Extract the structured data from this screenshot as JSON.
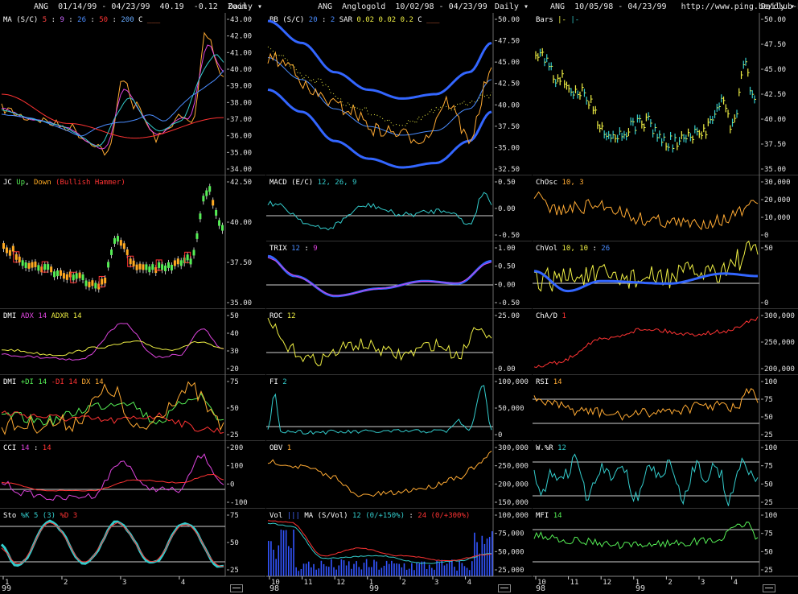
{
  "columns": [
    {
      "id": "left",
      "symbol": "ANG",
      "range": "01/14/99 - 04/23/99",
      "last": "40.19",
      "change": "-0.12",
      "zoom": "Zoom",
      "period": "Daily",
      "panes": [
        {
          "id": "ma",
          "label": [
            {
              "t": "MA (S/C) ",
              "c": "#ffffff"
            },
            {
              "t": "5",
              "c": "#ff4444"
            },
            {
              "t": " : ",
              "c": "#ffffff"
            },
            {
              "t": "9",
              "c": "#cc66ff"
            },
            {
              "t": " : ",
              "c": "#ffffff"
            },
            {
              "t": "26",
              "c": "#4a8cff"
            },
            {
              "t": " : ",
              "c": "#ffffff"
            },
            {
              "t": "50",
              "c": "#ff3333"
            },
            {
              "t": " : ",
              "c": "#ffffff"
            },
            {
              "t": "200",
              "c": "#66aaff"
            },
            {
              "t": "   C ",
              "c": "#ffffff"
            },
            {
              "t": "___",
              "c": "#ff7744"
            }
          ],
          "ticks": [
            "43.00",
            "42.00",
            "41.00",
            "40.00",
            "39.00",
            "38.00",
            "37.00",
            "36.00",
            "35.00",
            "34.00"
          ]
        },
        {
          "id": "jc",
          "label": [
            {
              "t": "JC ",
              "c": "#ffffff"
            },
            {
              "t": "Up",
              "c": "#55ee55"
            },
            {
              "t": ", ",
              "c": "#ffffff"
            },
            {
              "t": "Down",
              "c": "#ffaa22"
            },
            {
              "t": "  (Bullish Hammer)",
              "c": "#ff3333"
            }
          ],
          "ticks": [
            "42.50",
            "40.00",
            "37.50",
            "35.00"
          ]
        },
        {
          "id": "dmi1",
          "label": [
            {
              "t": "DMI ",
              "c": "#ffffff"
            },
            {
              "t": "ADX 14",
              "c": "#dd44dd"
            },
            {
              "t": " ",
              "c": "#ffffff"
            },
            {
              "t": "ADXR 14",
              "c": "#eeee44"
            }
          ],
          "ticks": [
            "50",
            "40",
            "30",
            "20"
          ]
        },
        {
          "id": "dmi2",
          "label": [
            {
              "t": "DMI ",
              "c": "#ffffff"
            },
            {
              "t": "+DI 14",
              "c": "#55ee55"
            },
            {
              "t": " ",
              "c": "#ffffff"
            },
            {
              "t": "-DI 14",
              "c": "#ff3333"
            },
            {
              "t": " ",
              "c": "#ffffff"
            },
            {
              "t": "DX 14",
              "c": "#ffaa33"
            }
          ],
          "ticks": [
            "75",
            "50",
            "25"
          ]
        },
        {
          "id": "cci",
          "label": [
            {
              "t": "CCI ",
              "c": "#ffffff"
            },
            {
              "t": "14",
              "c": "#dd44dd"
            },
            {
              "t": " : ",
              "c": "#ffffff"
            },
            {
              "t": "14",
              "c": "#ff3333"
            }
          ],
          "ticks": [
            "200",
            "100",
            "0",
            "-100"
          ]
        },
        {
          "id": "sto",
          "label": [
            {
              "t": "Sto ",
              "c": "#ffffff"
            },
            {
              "t": "%K 5 (3)",
              "c": "#33cccc"
            },
            {
              "t": " ",
              "c": "#ffffff"
            },
            {
              "t": "%D 3",
              "c": "#ff3333"
            }
          ],
          "ticks": [
            "75",
            "50",
            "25"
          ]
        }
      ],
      "xlabels": [
        "1",
        "2",
        "3",
        "4"
      ],
      "year": "99"
    },
    {
      "id": "mid",
      "symbol": "ANG",
      "name": "Anglogold",
      "range": "10/02/98 - 04/23/99",
      "period": "Daily",
      "panes": [
        {
          "id": "bb",
          "label": [
            {
              "t": "BB (S/C) ",
              "c": "#ffffff"
            },
            {
              "t": "20",
              "c": "#4a8cff"
            },
            {
              "t": " : ",
              "c": "#ffffff"
            },
            {
              "t": "2",
              "c": "#4a8cff"
            },
            {
              "t": "   SAR  ",
              "c": "#ffffff"
            },
            {
              "t": "0.02",
              "c": "#eeee44"
            },
            {
              "t": "  ",
              "c": "#ffffff"
            },
            {
              "t": "0.02",
              "c": "#eeee44"
            },
            {
              "t": "  ",
              "c": "#ffffff"
            },
            {
              "t": "0.2",
              "c": "#eeee44"
            },
            {
              "t": "    C ",
              "c": "#ffffff"
            },
            {
              "t": "___",
              "c": "#ff7744"
            }
          ],
          "ticks": [
            "50.00",
            "47.50",
            "45.00",
            "42.50",
            "40.00",
            "37.50",
            "35.00",
            "32.50"
          ]
        },
        {
          "id": "macd",
          "label": [
            {
              "t": "MACD (E/C) ",
              "c": "#ffffff"
            },
            {
              "t": "12, 26, 9",
              "c": "#33cccc"
            }
          ],
          "ticks": [
            "0.50",
            "0.00",
            "-0.50"
          ]
        },
        {
          "id": "trix",
          "label": [
            {
              "t": "TRIX ",
              "c": "#ffffff"
            },
            {
              "t": "12",
              "c": "#4a8cff"
            },
            {
              "t": " : ",
              "c": "#ffffff"
            },
            {
              "t": "9",
              "c": "#dd44dd"
            }
          ],
          "ticks": [
            "1.00",
            "0.50",
            "0.00",
            "-0.50"
          ]
        },
        {
          "id": "roc",
          "label": [
            {
              "t": "ROC ",
              "c": "#ffffff"
            },
            {
              "t": "12",
              "c": "#eeee44"
            }
          ],
          "ticks": [
            "25.00",
            "0.00"
          ]
        },
        {
          "id": "fi",
          "label": [
            {
              "t": "FI ",
              "c": "#ffffff"
            },
            {
              "t": "2",
              "c": "#33cccc"
            }
          ],
          "ticks": [
            "100,000",
            "50,000",
            "0"
          ]
        },
        {
          "id": "obv",
          "label": [
            {
              "t": "OBV ",
              "c": "#ffffff"
            },
            {
              "t": "1",
              "c": "#ffaa33"
            }
          ],
          "ticks": [
            "300,000",
            "250,000",
            "200,000",
            "150,000"
          ]
        },
        {
          "id": "vol",
          "label": [
            {
              "t": "Vol ",
              "c": "#ffffff"
            },
            {
              "t": "|||",
              "c": "#4466ff"
            },
            {
              "t": "  MA (S/Vol) ",
              "c": "#ffffff"
            },
            {
              "t": "12 (0/+150%)",
              "c": "#33cccc"
            },
            {
              "t": " : ",
              "c": "#ffffff"
            },
            {
              "t": "24 (0/+300%)",
              "c": "#ff3333"
            }
          ],
          "ticks": [
            "100,000",
            "75,000",
            "50,000",
            "25,000"
          ]
        }
      ],
      "xlabels": [
        "10",
        "11",
        "12",
        "1",
        "2",
        "3",
        "4"
      ],
      "years": [
        "98",
        "99"
      ]
    },
    {
      "id": "right",
      "symbol": "ANG",
      "range": "10/05/98 - 04/23/99",
      "url": "http://www.ping.be/club-bourse",
      "period": "Daily",
      "panes": [
        {
          "id": "bars",
          "label": [
            {
              "t": "Bars ",
              "c": "#ffffff"
            },
            {
              "t": "|-",
              "c": "#eeee44"
            },
            {
              "t": "  ",
              "c": "#ffffff"
            },
            {
              "t": "|-",
              "c": "#33cccc"
            }
          ],
          "ticks": [
            "50.00",
            "47.50",
            "45.00",
            "42.50",
            "40.00",
            "37.50",
            "35.00"
          ]
        },
        {
          "id": "chosc",
          "label": [
            {
              "t": "ChOsc ",
              "c": "#ffffff"
            },
            {
              "t": "10, 3",
              "c": "#ffaa33"
            }
          ],
          "ticks": [
            "30,000",
            "20,000",
            "10,000",
            "0"
          ]
        },
        {
          "id": "chvol",
          "label": [
            {
              "t": "ChVol ",
              "c": "#ffffff"
            },
            {
              "t": "10, 10",
              "c": "#eeee44"
            },
            {
              "t": " : ",
              "c": "#ffffff"
            },
            {
              "t": "26",
              "c": "#4a8cff"
            }
          ],
          "ticks": [
            "50",
            "0"
          ]
        },
        {
          "id": "chad",
          "label": [
            {
              "t": "ChA/D ",
              "c": "#ffffff"
            },
            {
              "t": "1",
              "c": "#ff3333"
            }
          ],
          "ticks": [
            "300,000",
            "250,000",
            "200,000"
          ]
        },
        {
          "id": "rsi",
          "label": [
            {
              "t": "RSI ",
              "c": "#ffffff"
            },
            {
              "t": "14",
              "c": "#ffaa33"
            }
          ],
          "ticks": [
            "100",
            "75",
            "50",
            "25"
          ]
        },
        {
          "id": "wr",
          "label": [
            {
              "t": "W.%R ",
              "c": "#ffffff"
            },
            {
              "t": "12",
              "c": "#33cccc"
            }
          ],
          "ticks": [
            "100",
            "75",
            "50",
            "25"
          ]
        },
        {
          "id": "mfi",
          "label": [
            {
              "t": "MFI ",
              "c": "#ffffff"
            },
            {
              "t": "14",
              "c": "#55ee55"
            }
          ],
          "ticks": [
            "100",
            "75",
            "50",
            "25"
          ]
        }
      ],
      "xlabels": [
        "10",
        "11",
        "12",
        "1",
        "2",
        "3",
        "4"
      ],
      "years": [
        "98",
        "99"
      ]
    }
  ]
}
